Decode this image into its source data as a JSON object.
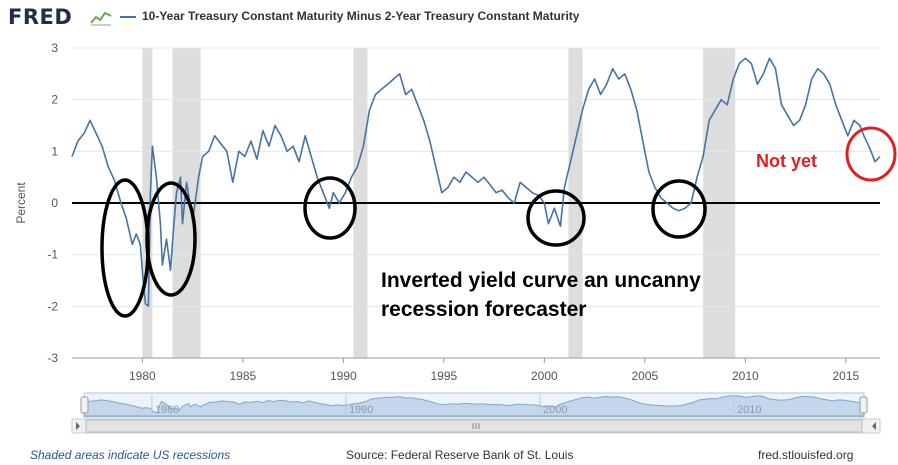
{
  "header": {
    "logo": "FRED",
    "logo_icon": "chart-trend-icon",
    "legend_label": "10-Year Treasury Constant Maturity Minus 2-Year Treasury Constant Maturity"
  },
  "annotations": {
    "main_text_line1": "Inverted yield curve an uncanny",
    "main_text_line2": "recession forecaster",
    "not_yet": "Not yet"
  },
  "footer": {
    "recession_note": "Shaded areas indicate US recessions",
    "source": "Source: Federal Reserve Bank of St. Louis",
    "site": "fred.stlouisfed.org"
  },
  "colors": {
    "series": "#4572a7",
    "recession_shade": "#dddddd",
    "annotation_red": "#e02020",
    "logo": "#1f2e4a"
  },
  "chart_data": {
    "type": "line",
    "ylabel": "Percent",
    "xlim": [
      1976.5,
      2016.7
    ],
    "ylim": [
      -3,
      3
    ],
    "yticks": [
      -3,
      -2,
      -1,
      0,
      1,
      2,
      3
    ],
    "xticks": [
      1980,
      1985,
      1990,
      1995,
      2000,
      2005,
      2010,
      2015
    ],
    "navigator_ticks": [
      1980,
      1990,
      2000,
      2010
    ],
    "recessions": [
      [
        1980.0,
        1980.5
      ],
      [
        1981.5,
        1982.9
      ],
      [
        1990.5,
        1991.2
      ],
      [
        2001.2,
        2001.9
      ],
      [
        2007.9,
        2009.5
      ]
    ],
    "series": [
      {
        "name": "10-Year Treasury Constant Maturity Minus 2-Year Treasury Constant Maturity",
        "points": [
          [
            1976.5,
            0.9
          ],
          [
            1976.8,
            1.2
          ],
          [
            1977.1,
            1.35
          ],
          [
            1977.4,
            1.6
          ],
          [
            1977.7,
            1.35
          ],
          [
            1978.0,
            1.1
          ],
          [
            1978.3,
            0.7
          ],
          [
            1978.6,
            0.45
          ],
          [
            1978.9,
            0.05
          ],
          [
            1979.2,
            -0.3
          ],
          [
            1979.5,
            -0.8
          ],
          [
            1979.7,
            -0.6
          ],
          [
            1979.9,
            -0.8
          ],
          [
            1980.0,
            -1.3
          ],
          [
            1980.15,
            -1.95
          ],
          [
            1980.3,
            -2.0
          ],
          [
            1980.4,
            0.2
          ],
          [
            1980.5,
            1.1
          ],
          [
            1980.7,
            0.5
          ],
          [
            1980.9,
            -0.4
          ],
          [
            1981.0,
            -1.2
          ],
          [
            1981.2,
            -0.7
          ],
          [
            1981.4,
            -1.3
          ],
          [
            1981.55,
            -0.5
          ],
          [
            1981.7,
            0.2
          ],
          [
            1981.9,
            0.5
          ],
          [
            1982.0,
            -0.4
          ],
          [
            1982.2,
            0.4
          ],
          [
            1982.5,
            -0.35
          ],
          [
            1982.8,
            0.5
          ],
          [
            1983.0,
            0.9
          ],
          [
            1983.3,
            1.0
          ],
          [
            1983.6,
            1.3
          ],
          [
            1983.9,
            1.15
          ],
          [
            1984.2,
            1.0
          ],
          [
            1984.5,
            0.4
          ],
          [
            1984.8,
            1.0
          ],
          [
            1985.1,
            0.9
          ],
          [
            1985.4,
            1.2
          ],
          [
            1985.7,
            0.85
          ],
          [
            1986.0,
            1.4
          ],
          [
            1986.3,
            1.1
          ],
          [
            1986.6,
            1.5
          ],
          [
            1986.9,
            1.3
          ],
          [
            1987.2,
            1.0
          ],
          [
            1987.5,
            1.1
          ],
          [
            1987.8,
            0.8
          ],
          [
            1988.1,
            1.3
          ],
          [
            1988.4,
            0.9
          ],
          [
            1988.7,
            0.5
          ],
          [
            1989.0,
            0.2
          ],
          [
            1989.3,
            -0.1
          ],
          [
            1989.5,
            0.2
          ],
          [
            1989.8,
            0.0
          ],
          [
            1990.1,
            0.2
          ],
          [
            1990.4,
            0.5
          ],
          [
            1990.7,
            0.7
          ],
          [
            1991.0,
            1.1
          ],
          [
            1991.3,
            1.8
          ],
          [
            1991.6,
            2.1
          ],
          [
            1991.9,
            2.2
          ],
          [
            1992.2,
            2.3
          ],
          [
            1992.5,
            2.4
          ],
          [
            1992.8,
            2.5
          ],
          [
            1993.1,
            2.1
          ],
          [
            1993.4,
            2.2
          ],
          [
            1993.7,
            1.9
          ],
          [
            1994.0,
            1.6
          ],
          [
            1994.3,
            1.2
          ],
          [
            1994.6,
            0.7
          ],
          [
            1994.9,
            0.2
          ],
          [
            1995.2,
            0.3
          ],
          [
            1995.5,
            0.5
          ],
          [
            1995.8,
            0.4
          ],
          [
            1996.1,
            0.6
          ],
          [
            1996.4,
            0.5
          ],
          [
            1996.7,
            0.4
          ],
          [
            1997.0,
            0.5
          ],
          [
            1997.3,
            0.35
          ],
          [
            1997.6,
            0.2
          ],
          [
            1997.9,
            0.25
          ],
          [
            1998.2,
            0.1
          ],
          [
            1998.5,
            0.0
          ],
          [
            1998.8,
            0.4
          ],
          [
            1999.1,
            0.3
          ],
          [
            1999.4,
            0.2
          ],
          [
            1999.7,
            0.15
          ],
          [
            2000.0,
            0.0
          ],
          [
            2000.2,
            -0.4
          ],
          [
            2000.5,
            -0.1
          ],
          [
            2000.8,
            -0.45
          ],
          [
            2001.0,
            0.3
          ],
          [
            2001.3,
            0.8
          ],
          [
            2001.6,
            1.3
          ],
          [
            2001.9,
            1.8
          ],
          [
            2002.2,
            2.2
          ],
          [
            2002.5,
            2.4
          ],
          [
            2002.8,
            2.1
          ],
          [
            2003.1,
            2.3
          ],
          [
            2003.4,
            2.6
          ],
          [
            2003.7,
            2.4
          ],
          [
            2004.0,
            2.5
          ],
          [
            2004.3,
            2.2
          ],
          [
            2004.6,
            1.8
          ],
          [
            2004.9,
            1.2
          ],
          [
            2005.2,
            0.6
          ],
          [
            2005.5,
            0.3
          ],
          [
            2005.8,
            0.1
          ],
          [
            2006.1,
            0.0
          ],
          [
            2006.4,
            -0.1
          ],
          [
            2006.7,
            -0.15
          ],
          [
            2007.0,
            -0.1
          ],
          [
            2007.3,
            0.0
          ],
          [
            2007.6,
            0.5
          ],
          [
            2007.9,
            0.9
          ],
          [
            2008.2,
            1.6
          ],
          [
            2008.5,
            1.8
          ],
          [
            2008.8,
            2.0
          ],
          [
            2009.1,
            1.9
          ],
          [
            2009.4,
            2.4
          ],
          [
            2009.7,
            2.7
          ],
          [
            2010.0,
            2.8
          ],
          [
            2010.3,
            2.7
          ],
          [
            2010.6,
            2.3
          ],
          [
            2010.9,
            2.5
          ],
          [
            2011.2,
            2.8
          ],
          [
            2011.5,
            2.6
          ],
          [
            2011.8,
            1.9
          ],
          [
            2012.1,
            1.7
          ],
          [
            2012.4,
            1.5
          ],
          [
            2012.7,
            1.6
          ],
          [
            2013.0,
            1.9
          ],
          [
            2013.3,
            2.4
          ],
          [
            2013.6,
            2.6
          ],
          [
            2013.9,
            2.5
          ],
          [
            2014.2,
            2.3
          ],
          [
            2014.5,
            1.9
          ],
          [
            2014.8,
            1.6
          ],
          [
            2015.1,
            1.3
          ],
          [
            2015.4,
            1.6
          ],
          [
            2015.7,
            1.5
          ],
          [
            2015.9,
            1.3
          ],
          [
            2016.2,
            1.05
          ],
          [
            2016.45,
            0.8
          ],
          [
            2016.7,
            0.9
          ]
        ]
      }
    ]
  }
}
